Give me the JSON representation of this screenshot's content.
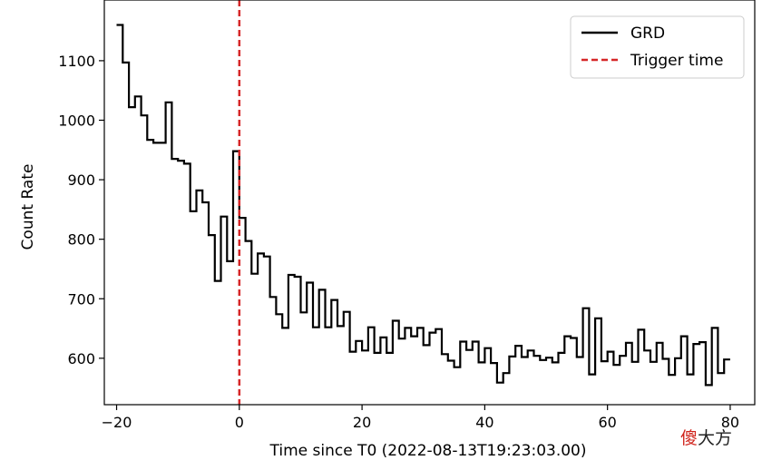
{
  "chart_data": {
    "type": "line",
    "title": "",
    "xlabel": "Time since T0 (2022-08-13T19:23:03.00)",
    "ylabel": "Count Rate",
    "xlim": [
      -22,
      84
    ],
    "ylim": [
      522,
      1202
    ],
    "xticks": [
      -20,
      0,
      20,
      40,
      60,
      80
    ],
    "xtick_labels": [
      "−20",
      "0",
      "20",
      "40",
      "60",
      "80"
    ],
    "yticks": [
      600,
      700,
      800,
      900,
      1000,
      1100
    ],
    "ytick_labels": [
      "600",
      "700",
      "800",
      "900",
      "1000",
      "1100"
    ],
    "grid": false,
    "legend_position": "top-right",
    "step_width": 1,
    "series": [
      {
        "name": "GRD",
        "color": "#000000",
        "style": "steps",
        "x": [
          -19.5,
          -18.5,
          -17.5,
          -16.5,
          -15.5,
          -14.5,
          -13.5,
          -12.5,
          -11.5,
          -10.5,
          -9.5,
          -8.5,
          -7.5,
          -6.5,
          -5.5,
          -4.5,
          -3.5,
          -2.5,
          -1.5,
          -0.5,
          0.5,
          1.5,
          2.5,
          3.5,
          4.5,
          5.5,
          6.5,
          7.5,
          8.5,
          9.5,
          10.5,
          11.5,
          12.5,
          13.5,
          14.5,
          15.5,
          16.5,
          17.5,
          18.5,
          19.5,
          20.5,
          21.5,
          22.5,
          23.5,
          24.5,
          25.5,
          26.5,
          27.5,
          28.5,
          29.5,
          30.5,
          31.5,
          32.5,
          33.5,
          34.5,
          35.5,
          36.5,
          37.5,
          38.5,
          39.5,
          40.5,
          41.5,
          42.5,
          43.5,
          44.5,
          45.5,
          46.5,
          47.5,
          48.5,
          49.5,
          50.5,
          51.5,
          52.5,
          53.5,
          54.5,
          55.5,
          56.5,
          57.5,
          58.5,
          59.5,
          60.5,
          61.5,
          62.5,
          63.5,
          64.5,
          65.5,
          66.5,
          67.5,
          68.5,
          69.5,
          70.5,
          71.5,
          72.5,
          73.5,
          74.5,
          75.5,
          76.5,
          77.5,
          78.5,
          79.5
        ],
        "y": [
          1160,
          1097,
          1022,
          1040,
          1008,
          967,
          962,
          962,
          1030,
          935,
          932,
          927,
          847,
          882,
          862,
          807,
          730,
          838,
          763,
          948,
          836,
          797,
          742,
          776,
          771,
          703,
          674,
          651,
          740,
          737,
          677,
          727,
          652,
          715,
          652,
          698,
          654,
          678,
          611,
          629,
          613,
          652,
          609,
          635,
          609,
          663,
          633,
          651,
          637,
          651,
          622,
          643,
          649,
          607,
          596,
          585,
          628,
          614,
          628,
          593,
          617,
          592,
          559,
          575,
          603,
          621,
          602,
          613,
          604,
          597,
          601,
          593,
          609,
          637,
          634,
          602,
          684,
          573,
          667,
          595,
          611,
          589,
          604,
          626,
          594,
          648,
          613,
          594,
          626,
          599,
          572,
          600,
          637,
          573,
          624,
          627,
          555,
          651,
          575,
          598
        ]
      },
      {
        "name": "Trigger time",
        "color": "#d62728",
        "style": "dashed",
        "x": [
          0,
          0
        ],
        "y": [
          522,
          1202
        ]
      }
    ]
  },
  "watermark": {
    "first_char": "傻",
    "rest": "大方"
  }
}
